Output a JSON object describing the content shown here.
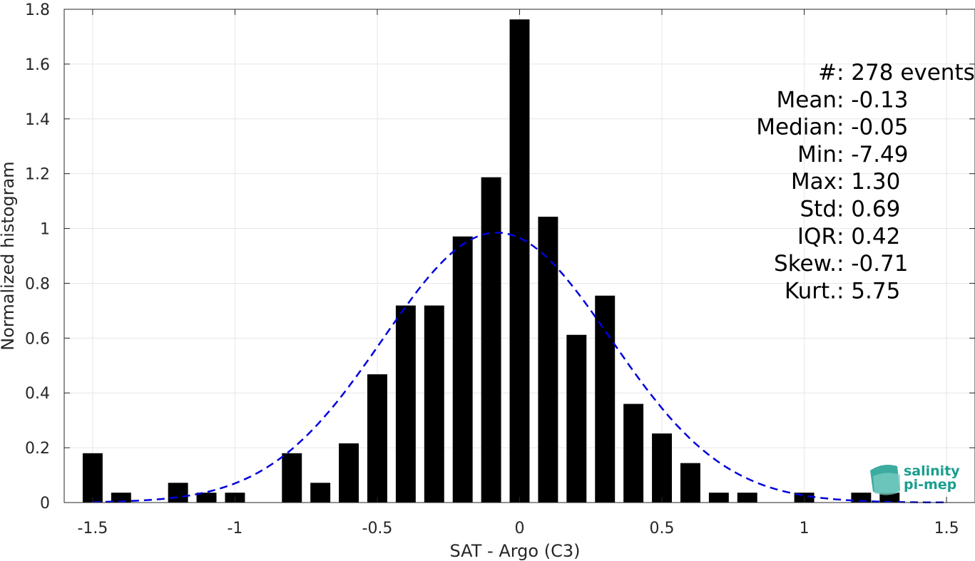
{
  "chart_data": {
    "type": "bar",
    "xlabel": "SAT - Argo (C3)",
    "ylabel": "Normalized histogram",
    "xlim": [
      -1.6,
      1.6
    ],
    "ylim": [
      0,
      1.8
    ],
    "grid": true,
    "x_ticks": [
      -1.5,
      -1,
      -0.5,
      0,
      0.5,
      1,
      1.5
    ],
    "x_tick_labels": [
      "-1.5",
      "-1",
      "-0.5",
      "0",
      "0.5",
      "1",
      "1.5"
    ],
    "y_ticks": [
      0,
      0.2,
      0.4,
      0.6,
      0.8,
      1,
      1.2,
      1.4,
      1.6,
      1.8
    ],
    "y_tick_labels": [
      "0",
      "0.2",
      "0.4",
      "0.6",
      "0.8",
      "1",
      "1.2",
      "1.4",
      "1.6",
      "1.8"
    ],
    "bin_width": 0.1,
    "bar_width": 0.07,
    "bins": [
      {
        "x": -1.5,
        "value": 0.18
      },
      {
        "x": -1.4,
        "value": 0.036
      },
      {
        "x": -1.3,
        "value": 0
      },
      {
        "x": -1.2,
        "value": 0.072
      },
      {
        "x": -1.1,
        "value": 0.036
      },
      {
        "x": -1.0,
        "value": 0.036
      },
      {
        "x": -0.9,
        "value": 0
      },
      {
        "x": -0.8,
        "value": 0.18
      },
      {
        "x": -0.7,
        "value": 0.072
      },
      {
        "x": -0.6,
        "value": 0.216
      },
      {
        "x": -0.5,
        "value": 0.468
      },
      {
        "x": -0.4,
        "value": 0.719
      },
      {
        "x": -0.3,
        "value": 0.719
      },
      {
        "x": -0.2,
        "value": 0.971
      },
      {
        "x": -0.1,
        "value": 1.187
      },
      {
        "x": 0.0,
        "value": 1.763
      },
      {
        "x": 0.1,
        "value": 1.043
      },
      {
        "x": 0.2,
        "value": 0.612
      },
      {
        "x": 0.3,
        "value": 0.755
      },
      {
        "x": 0.4,
        "value": 0.36
      },
      {
        "x": 0.5,
        "value": 0.252
      },
      {
        "x": 0.6,
        "value": 0.144
      },
      {
        "x": 0.7,
        "value": 0.036
      },
      {
        "x": 0.8,
        "value": 0.036
      },
      {
        "x": 0.9,
        "value": 0
      },
      {
        "x": 1.0,
        "value": 0.036
      },
      {
        "x": 1.1,
        "value": 0
      },
      {
        "x": 1.2,
        "value": 0.036
      },
      {
        "x": 1.3,
        "value": 0.036
      }
    ],
    "fit_curve": {
      "style": "dashed",
      "color": "#0000dd",
      "x_range": [
        -1.5,
        1.5
      ],
      "center": -0.08,
      "spread": 0.4,
      "peak": 0.985
    },
    "annotations": [
      {
        "label": "#  ",
        "value": ": 278 events"
      },
      {
        "label": "Mean ",
        "value": ": -0.13"
      },
      {
        "label": "Median ",
        "value": ": -0.05"
      },
      {
        "label": "Min ",
        "value": ": -7.49"
      },
      {
        "label": "Max ",
        "value": ": 1.30"
      },
      {
        "label": "Std ",
        "value": ": 0.69"
      },
      {
        "label": "IQR ",
        "value": ": 0.42"
      },
      {
        "label": "Skew. ",
        "value": ": -0.71"
      },
      {
        "label": "Kurt. ",
        "value": ": 5.75"
      }
    ]
  },
  "logo": {
    "line1": "salinity",
    "line2": "pi-mep",
    "color": "#1a9e8f"
  },
  "colors": {
    "bars": "#000000",
    "grid": "#e6e6e6",
    "axis": "#262626"
  }
}
